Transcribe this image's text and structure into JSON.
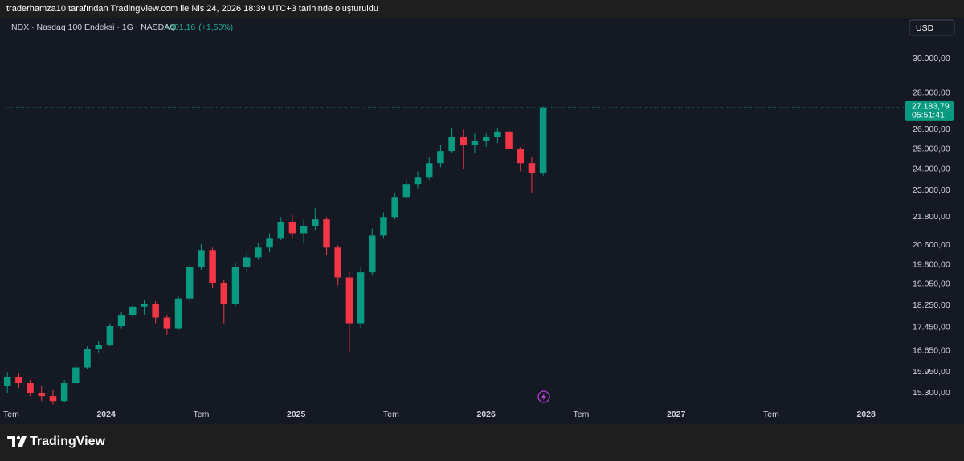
{
  "header": {
    "caption": "traderhamza10 tarafından TradingView.com ile Nis 24, 2026 18:39 UTC+3 tarihinde oluşturuldu"
  },
  "chart_data": {
    "type": "candlestick",
    "title": "NDX · Nasdaq 100 Endeksi · 1G · NASDAQ",
    "change": {
      "value": 401.16,
      "label": "+401,16"
    },
    "change_pct": {
      "value": 1.5,
      "label": "(+1,50%)"
    },
    "currency": "USD",
    "x": [
      2023.48,
      2023.54,
      2023.6,
      2023.66,
      2023.72,
      2023.78,
      2023.84,
      2023.9,
      2023.96,
      2024.02,
      2024.08,
      2024.14,
      2024.2,
      2024.26,
      2024.32,
      2024.38,
      2024.44,
      2024.5,
      2024.56,
      2024.62,
      2024.68,
      2024.74,
      2024.8,
      2024.86,
      2024.92,
      2024.98,
      2025.04,
      2025.1,
      2025.16,
      2025.22,
      2025.28,
      2025.34,
      2025.4,
      2025.46,
      2025.52,
      2025.58,
      2025.64,
      2025.7,
      2025.76,
      2025.82,
      2025.88,
      2025.94,
      2026.0,
      2026.06,
      2026.12,
      2026.18,
      2026.24,
      2026.3
    ],
    "open": [
      15500,
      15800,
      15600,
      15300,
      15200,
      15050,
      15600,
      16100,
      16700,
      16850,
      17500,
      17900,
      18200,
      18300,
      17800,
      17400,
      18500,
      19700,
      20400,
      19100,
      18300,
      19700,
      20100,
      20500,
      20900,
      21600,
      21100,
      21400,
      21700,
      20500,
      19300,
      17600,
      19500,
      21000,
      21800,
      22700,
      23300,
      23600,
      24300,
      24900,
      25600,
      25200,
      25400,
      25600,
      25900,
      25000,
      24300,
      23800
    ],
    "high": [
      15950,
      15930,
      15700,
      15500,
      15400,
      15700,
      16200,
      16800,
      17000,
      17600,
      18000,
      18350,
      18450,
      18400,
      17900,
      18600,
      19800,
      20650,
      20500,
      19200,
      19900,
      20300,
      20700,
      21100,
      21800,
      21900,
      21700,
      22200,
      21800,
      20600,
      19500,
      19700,
      21300,
      22000,
      22900,
      23500,
      23900,
      24600,
      25200,
      26100,
      26000,
      25800,
      25800,
      26100,
      26000,
      25100,
      24600,
      27250
    ],
    "low": [
      15300,
      15450,
      15200,
      15050,
      14950,
      15000,
      15550,
      16050,
      16600,
      16800,
      17400,
      17800,
      17900,
      17600,
      17200,
      17350,
      18400,
      19600,
      18900,
      17600,
      18200,
      19500,
      20000,
      20300,
      20800,
      20900,
      20700,
      21200,
      20200,
      19000,
      16600,
      17400,
      19400,
      20900,
      21700,
      22600,
      23100,
      23500,
      24100,
      24800,
      24000,
      24800,
      25100,
      25300,
      24600,
      23900,
      22900,
      23700
    ],
    "close": [
      15800,
      15600,
      15300,
      15200,
      15050,
      15600,
      16100,
      16700,
      16850,
      17500,
      17900,
      18200,
      18300,
      17800,
      17400,
      18500,
      19700,
      20400,
      19100,
      18300,
      19700,
      20100,
      20500,
      20900,
      21600,
      21100,
      21400,
      21700,
      20500,
      19300,
      17600,
      19500,
      21000,
      21800,
      22700,
      23300,
      23600,
      24300,
      24900,
      25600,
      25200,
      25400,
      25600,
      25900,
      25000,
      24300,
      23800,
      27183.79
    ],
    "up_color": "#089981",
    "down_color": "#f23645",
    "log_scale": true,
    "xlim": [
      2023.475,
      2028.198
    ],
    "xticks": [
      {
        "value": 2023.5,
        "label": "Tem"
      },
      2024,
      {
        "value": 2024.5,
        "label": "Tem"
      },
      2025,
      {
        "value": 2025.5,
        "label": "Tem"
      },
      2026,
      {
        "value": 2026.5,
        "label": "Tem"
      },
      2027,
      {
        "value": 2027.5,
        "label": "Tem"
      },
      2028
    ],
    "ylim": [
      14910,
      31390
    ],
    "yticks": [
      {
        "value": 15300,
        "label": "15.300,00"
      },
      {
        "value": 15950,
        "label": "15.950,00"
      },
      {
        "value": 16650,
        "label": "16.650,00"
      },
      {
        "value": 17450,
        "label": "17.450,00"
      },
      {
        "value": 18250,
        "label": "18.250,00"
      },
      {
        "value": 19050,
        "label": "19.050,00"
      },
      {
        "value": 19800,
        "label": "19.800,00"
      },
      {
        "value": 20600,
        "label": "20.600,00"
      },
      {
        "value": 21800,
        "label": "21.800,00"
      },
      {
        "value": 23000,
        "label": "23.000,00"
      },
      {
        "value": 24000,
        "label": "24.000,00"
      },
      {
        "value": 25000,
        "label": "25.000,00"
      },
      {
        "value": 26000,
        "label": "26.000,00"
      },
      {
        "value": 28000,
        "label": "28.000,00"
      },
      {
        "value": 30000,
        "label": "30.000,00"
      }
    ],
    "last_price": {
      "value": 27183.79,
      "label": "27.183,79"
    },
    "countdown": "05:51:41"
  },
  "footer": {
    "brand": "TradingView"
  }
}
